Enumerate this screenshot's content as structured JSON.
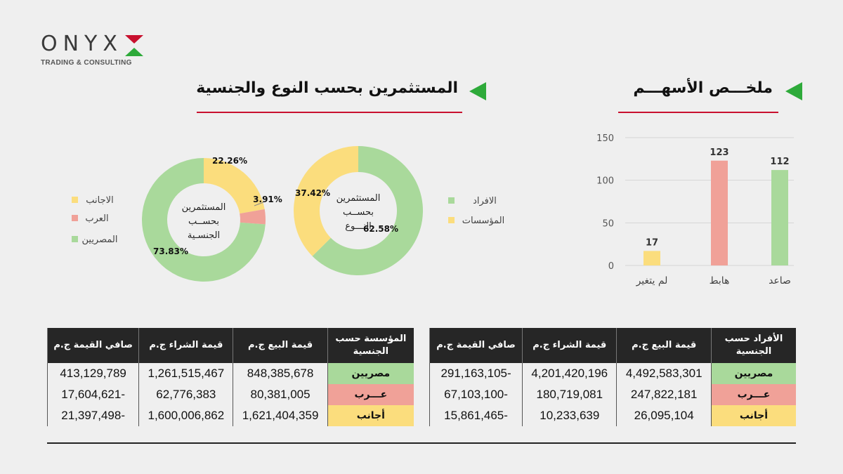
{
  "logo": {
    "word": "ONYX",
    "tagline": "TRADING & CONSULTING"
  },
  "colors": {
    "green": "#a9d99b",
    "red": "#f0a198",
    "yellow": "#fbdd7d",
    "header": "#262626",
    "accent_line": "#c8102e",
    "arrow": "#2eaa3a"
  },
  "sections": {
    "investors_title": "المستثمرين بحسب النوع والجنسية",
    "stocks_title": "ملخـــص الأسهـــم"
  },
  "chart_data": [
    {
      "type": "bar",
      "title": "ملخـــص الأسهـــم",
      "categories": [
        "صاعد",
        "هابط",
        "لم يتغير"
      ],
      "values": [
        112,
        123,
        17
      ],
      "colors": [
        "#a9d99b",
        "#f0a198",
        "#fbdd7d"
      ],
      "yticks": [
        0,
        50,
        100,
        150
      ],
      "ylim": [
        0,
        150
      ],
      "grid": true
    },
    {
      "type": "pie",
      "title": "المستثمرين بحسب النوع",
      "center_label": [
        "المستثمرين",
        "بحســب",
        "النـــوع"
      ],
      "labels": [
        "الافراد",
        "المؤسسات"
      ],
      "values": [
        62.58,
        37.42
      ],
      "value_labels": [
        "62.58%",
        "37.42%"
      ],
      "colors": [
        "#a9d99b",
        "#fbdd7d"
      ],
      "legend": "right"
    },
    {
      "type": "pie",
      "title": "المستثمرين بحسب الجنسية",
      "center_label": [
        "المستثمرين",
        "بحســب",
        "الجنسـية"
      ],
      "labels": [
        "الاجانب",
        "العرب",
        "المصريين"
      ],
      "values": [
        22.26,
        3.91,
        73.83
      ],
      "value_labels": [
        "22.26%",
        "3.91%",
        "73.83%"
      ],
      "colors": [
        "#fbdd7d",
        "#f0a198",
        "#a9d99b"
      ],
      "legend": "left"
    }
  ],
  "tables": {
    "individuals": {
      "headers": [
        "الأفراد حسب الجنسية",
        "قيمة البيع ج.م",
        "قيمة الشراء ج.م",
        "صافي القيمة ج.م"
      ],
      "rows": [
        {
          "cat": "مصريين",
          "sell": "4,492,583,301",
          "buy": "4,201,420,196",
          "net": "-291,163,105"
        },
        {
          "cat": "عـــرب",
          "sell": "247,822,181",
          "buy": "180,719,081",
          "net": "-67,103,100"
        },
        {
          "cat": "أجانب",
          "sell": "26,095,104",
          "buy": "10,233,639",
          "net": "-15,861,465"
        }
      ]
    },
    "institutions": {
      "headers": [
        "المؤسسة حسب الجنسية",
        "قيمة البيع ج.م",
        "قيمة الشراء ج.م",
        "صافي القيمة ج.م"
      ],
      "rows": [
        {
          "cat": "مصريين",
          "sell": "848,385,678",
          "buy": "1,261,515,467",
          "net": "413,129,789"
        },
        {
          "cat": "عـــرب",
          "sell": "80,381,005",
          "buy": "62,776,383",
          "net": "-17,604,621"
        },
        {
          "cat": "أجانب",
          "sell": "1,621,404,359",
          "buy": "1,600,006,862",
          "net": "-21,397,498"
        }
      ]
    }
  }
}
